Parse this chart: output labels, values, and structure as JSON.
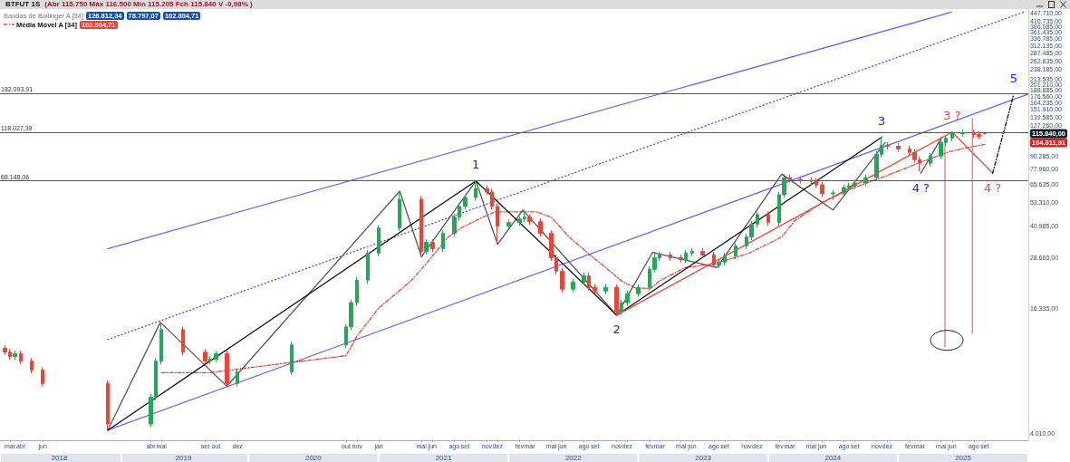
{
  "chart_data": {
    "type": "candlestick",
    "title": "BTFUT 1S",
    "subtitle": "(Abr 115.750 Máx 116.500 Min 115.205 Fch 115.840 V -0,98% )",
    "x": [
      "2018-02-15",
      "2018-03-01",
      "2018-03-15",
      "2018-04-01",
      "2018-05-01",
      "2018-06-01",
      "2018-12-01",
      "2019-04-01",
      "2019-04-15",
      "2019-05-01",
      "2019-07-01",
      "2019-09-01",
      "2019-09-15",
      "2019-10-01",
      "2019-11-01",
      "2019-12-01",
      "2020-05-01",
      "2020-10-01",
      "2020-10-15",
      "2020-11-01",
      "2020-12-01",
      "2021-01-01",
      "2021-03-01",
      "2021-05-01",
      "2021-05-15",
      "2021-06-01",
      "2021-07-01",
      "2021-08-01",
      "2021-08-15",
      "2021-09-01",
      "2021-10-01",
      "2021-11-01",
      "2021-11-15",
      "2021-12-01",
      "2022-01-01",
      "2022-02-01",
      "2022-02-15",
      "2022-03-01",
      "2022-04-01",
      "2022-05-01",
      "2022-05-15",
      "2022-06-01",
      "2022-07-01",
      "2022-08-01",
      "2022-08-15",
      "2022-09-01",
      "2022-10-01",
      "2022-11-01",
      "2022-11-15",
      "2022-12-01",
      "2023-01-01",
      "2023-02-01",
      "2023-02-15",
      "2023-03-01",
      "2023-04-01",
      "2023-05-01",
      "2023-05-15",
      "2023-06-01",
      "2023-07-01",
      "2023-08-01",
      "2023-08-15",
      "2023-09-01",
      "2023-10-01",
      "2023-11-01",
      "2023-11-15",
      "2023-12-01",
      "2024-01-01",
      "2024-02-01",
      "2024-02-15",
      "2024-03-01",
      "2024-04-01",
      "2024-05-01",
      "2024-05-15",
      "2024-06-01",
      "2024-07-01",
      "2024-08-01",
      "2024-08-15",
      "2024-09-01",
      "2024-10-01",
      "2024-11-01",
      "2024-11-15",
      "2024-12-01",
      "2025-01-01",
      "2025-02-01",
      "2025-02-15",
      "2025-03-01",
      "2025-04-01",
      "2025-05-01",
      "2025-05-15",
      "2025-06-01",
      "2025-07-01",
      "2025-08-01",
      "2025-08-15",
      "2025-09-01"
    ],
    "ohlc": [
      [
        10400,
        10760,
        9610,
        9960
      ],
      [
        9960,
        10310,
        9140,
        9470
      ],
      [
        9470,
        10110,
        9140,
        9770
      ],
      [
        9770,
        10110,
        8690,
        9000
      ],
      [
        9000,
        9320,
        7860,
        8140
      ],
      [
        8140,
        8420,
        6760,
        7000
      ],
      [
        7000,
        7250,
        4140,
        4440
      ],
      [
        4440,
        6220,
        4290,
        6010
      ],
      [
        6010,
        9320,
        5800,
        9000
      ],
      [
        9000,
        13910,
        8690,
        12820
      ],
      [
        12820,
        13270,
        9610,
        9960
      ],
      [
        9960,
        10310,
        8690,
        9000
      ],
      [
        9000,
        9510,
        8690,
        9190
      ],
      [
        9190,
        10110,
        8870,
        9770
      ],
      [
        9770,
        10110,
        6790,
        7000
      ],
      [
        7000,
        8260,
        6760,
        7980
      ],
      [
        7980,
        11180,
        7700,
        10800
      ],
      [
        10800,
        13680,
        10420,
        13220
      ],
      [
        13220,
        17980,
        12760,
        17370
      ],
      [
        17370,
        23140,
        16760,
        22360
      ],
      [
        22360,
        31330,
        21580,
        30270
      ],
      [
        30270,
        41570,
        29210,
        40160
      ],
      [
        40160,
        60780,
        38760,
        55490
      ],
      [
        55490,
        57430,
        29070,
        30880
      ],
      [
        30880,
        35370,
        29800,
        34170
      ],
      [
        34170,
        35370,
        30730,
        31840
      ],
      [
        31840,
        39120,
        30730,
        37800
      ],
      [
        37800,
        46930,
        36480,
        45340
      ],
      [
        45340,
        52960,
        43750,
        51170
      ],
      [
        51170,
        58610,
        49380,
        56630
      ],
      [
        56630,
        68150,
        54650,
        62640
      ],
      [
        62640,
        64830,
        58070,
        60180
      ],
      [
        60180,
        62290,
        49380,
        51170
      ],
      [
        51170,
        52960,
        33490,
        40990
      ],
      [
        40990,
        44160,
        39560,
        42670
      ],
      [
        42670,
        46000,
        41180,
        44440
      ],
      [
        44440,
        49160,
        42890,
        45340
      ],
      [
        45340,
        46930,
        41600,
        43110
      ],
      [
        43110,
        44620,
        36480,
        37800
      ],
      [
        37800,
        39120,
        27760,
        28770
      ],
      [
        28770,
        29780,
        23870,
        24740
      ],
      [
        24740,
        25610,
        19500,
        20210
      ],
      [
        20210,
        22680,
        19500,
        21910
      ],
      [
        21910,
        24330,
        21140,
        23510
      ],
      [
        23510,
        24330,
        19900,
        20620
      ],
      [
        20620,
        21340,
        19120,
        19810
      ],
      [
        19810,
        21340,
        19120,
        20620
      ],
      [
        20620,
        21340,
        15080,
        15700
      ],
      [
        15700,
        17980,
        15150,
        17370
      ],
      [
        17370,
        19880,
        16760,
        19210
      ],
      [
        19210,
        21340,
        18540,
        20620
      ],
      [
        20620,
        26110,
        19900,
        25230
      ],
      [
        25230,
        30570,
        24350,
        28770
      ],
      [
        28770,
        30710,
        27760,
        29670
      ],
      [
        29670,
        30710,
        27760,
        28770
      ],
      [
        28770,
        29780,
        27210,
        28200
      ],
      [
        28200,
        31330,
        27210,
        30270
      ],
      [
        30270,
        31960,
        29210,
        30880
      ],
      [
        30880,
        31960,
        28630,
        29670
      ],
      [
        29670,
        30710,
        25750,
        26550
      ],
      [
        26550,
        28320,
        25620,
        27360
      ],
      [
        27360,
        30400,
        26400,
        29370
      ],
      [
        29370,
        33980,
        28340,
        32830
      ],
      [
        32830,
        37580,
        31680,
        36310
      ],
      [
        36310,
        43280,
        35040,
        41820
      ],
      [
        41820,
        48380,
        40360,
        46740
      ],
      [
        46740,
        48380,
        41180,
        42670
      ],
      [
        42670,
        60420,
        41180,
        58380
      ],
      [
        58380,
        73640,
        56340,
        70720
      ],
      [
        70720,
        73200,
        66870,
        69300
      ],
      [
        69300,
        71730,
        66200,
        68600
      ],
      [
        68600,
        71000,
        65530,
        67910
      ],
      [
        67910,
        70290,
        62950,
        65230
      ],
      [
        65230,
        67510,
        56920,
        58980
      ],
      [
        58980,
        61650,
        55000,
        59570
      ],
      [
        59570,
        65490,
        57490,
        63280
      ],
      [
        63280,
        66830,
        61060,
        64570
      ],
      [
        64570,
        68890,
        62310,
        66560
      ],
      [
        66560,
        73200,
        64230,
        70720
      ],
      [
        70720,
        95180,
        68240,
        91960
      ],
      [
        91960,
        111400,
        88740,
        101730
      ],
      [
        101730,
        105290,
        96980,
        100500
      ],
      [
        100500,
        104020,
        94280,
        97700
      ],
      [
        97700,
        101120,
        90540,
        93830
      ],
      [
        93830,
        97110,
        83520,
        86550
      ],
      [
        86550,
        89580,
        76000,
        83120
      ],
      [
        83120,
        93270,
        80210,
        90120
      ],
      [
        90120,
        108510,
        86970,
        104840
      ],
      [
        104840,
        114150,
        101170,
        110290
      ],
      [
        110290,
        119000,
        106430,
        116000
      ],
      [
        116000,
        121260,
        111940,
        117160
      ],
      [
        117160,
        121260,
        110800,
        114820
      ],
      [
        114820,
        118840,
        108600,
        112540
      ],
      [
        115750,
        116500,
        115205,
        115840
      ]
    ],
    "colors": [
      "#e8453c",
      "#e8453c",
      "#26a65b",
      "#e8453c",
      "#e8453c",
      "#e8453c",
      "#e8453c",
      "#26a65b",
      "#26a65b",
      "#26a65b",
      "#e8453c",
      "#e8453c",
      "#26a65b",
      "#26a65b",
      "#e8453c",
      "#26a65b",
      "#26a65b",
      "#26a65b",
      "#26a65b",
      "#26a65b",
      "#26a65b",
      "#26a65b",
      "#26a65b",
      "#e8453c",
      "#26a65b",
      "#e8453c",
      "#26a65b",
      "#26a65b",
      "#26a65b",
      "#26a65b",
      "#26a65b",
      "#e8453c",
      "#e8453c",
      "#e8453c",
      "#26a65b",
      "#26a65b",
      "#26a65b",
      "#e8453c",
      "#e8453c",
      "#e8453c",
      "#e8453c",
      "#e8453c",
      "#26a65b",
      "#26a65b",
      "#e8453c",
      "#e8453c",
      "#26a65b",
      "#e8453c",
      "#26a65b",
      "#26a65b",
      "#26a65b",
      "#26a65b",
      "#26a65b",
      "#26a65b",
      "#e8453c",
      "#e8453c",
      "#26a65b",
      "#26a65b",
      "#e8453c",
      "#e8453c",
      "#26a65b",
      "#26a65b",
      "#26a65b",
      "#26a65b",
      "#26a65b",
      "#26a65b",
      "#e8453c",
      "#26a65b",
      "#26a65b",
      "#e8453c",
      "#e8453c",
      "#e8453c",
      "#e8453c",
      "#e8453c",
      "#26a65b",
      "#26a65b",
      "#26a65b",
      "#26a65b",
      "#26a65b",
      "#26a65b",
      "#26a65b",
      "#e8453c",
      "#e8453c",
      "#e8453c",
      "#e8453c",
      "#e8453c",
      "#26a65b",
      "#26a65b",
      "#26a65b",
      "#26a65b",
      "#26a65b",
      "#e8453c",
      "#e8453c",
      "#26a65b"
    ],
    "series": [
      {
        "type": "line",
        "color": "#6a6af0",
        "x": [
          "2018-12-01",
          "2025-05-30"
        ],
        "values": [
          31840,
          453700
        ]
      },
      {
        "type": "line",
        "color": "#6a6af0",
        "x": [
          "2018-12-01",
          "2026-01-01"
        ],
        "values": [
          4140,
          180900
        ]
      },
      {
        "type": "line",
        "color": "#4a4ae6",
        "line_style": "dotted",
        "x": [
          "2018-12-01",
          "2025-12-19"
        ],
        "values": [
          11470,
          453700
        ]
      },
      {
        "type": "line",
        "name": "Média Móvel A [34]",
        "color": "#e8453c",
        "line_style": "dashed",
        "x": [
          "2019-05-01",
          "2019-09-15",
          "2019-12-01",
          "2020-10-01",
          "2020-11-01",
          "2021-01-01",
          "2021-04-01",
          "2021-05-20",
          "2021-07-15",
          "2021-08-25",
          "2021-10-20",
          "2021-11-25",
          "2022-02-10",
          "2022-03-20",
          "2022-05-01",
          "2022-06-20",
          "2022-08-15",
          "2022-10-01",
          "2022-11-15",
          "2022-12-25",
          "2023-02-05",
          "2023-03-01",
          "2023-05-12",
          "2023-08-01",
          "2023-09-28",
          "2023-11-08",
          "2024-02-08",
          "2024-03-15",
          "2024-06-03",
          "2024-08-30",
          "2024-11-28",
          "2025-02-25",
          "2025-05-25",
          "2025-07-10",
          "2025-09-01"
        ],
        "values": [
          7900,
          7900,
          8230,
          9570,
          11950,
          16350,
          22130,
          27640,
          36310,
          40570,
          45340,
          48170,
          48170,
          48170,
          45340,
          36310,
          29960,
          25750,
          22130,
          20410,
          20410,
          22130,
          25750,
          26820,
          28770,
          30270,
          36310,
          43550,
          53830,
          63280,
          72160,
          83120,
          94800,
          98690,
          102804.71
        ]
      },
      {
        "type": "line",
        "color": "#555555",
        "x": [
          "2018-12-01",
          "2019-04-28",
          "2019-11-01",
          "2021-03-01",
          "2021-05-01",
          "2021-10-01",
          "2021-12-01",
          "2022-02-10",
          "2022-11-01",
          "2023-02-10",
          "2023-08-10",
          "2024-02-08",
          "2024-07-01",
          "2024-11-25"
        ],
        "values": [
          4140,
          13910,
          6790,
          60780,
          29070,
          68150,
          33490,
          49160,
          15080,
          30570,
          25750,
          73640,
          49160,
          104840
        ]
      },
      {
        "type": "line",
        "color": "#555555",
        "x": [
          "2025-03-05",
          "2025-05-03"
        ],
        "values": [
          74390,
          111400
        ]
      },
      {
        "type": "line",
        "color": "#111111",
        "x": [
          "2018-12-01",
          "2021-10-01",
          "2022-11-01",
          "2024-11-15"
        ],
        "values": [
          4140,
          68150,
          15080,
          111400
        ]
      },
      {
        "type": "line",
        "color": "#e8453c",
        "x": [
          "2022-11-01",
          "2025-06-01",
          "2025-09-23"
        ],
        "values": [
          15080,
          118027,
          74390
        ]
      },
      {
        "type": "line",
        "color": "#111111",
        "line_style": "dashed",
        "x": [
          "2025-09-23",
          "2025-11-21"
        ],
        "values": [
          74390,
          179100
        ]
      },
      {
        "type": "line",
        "color": "#e87878",
        "x": [
          "2025-05-12",
          "2025-05-12"
        ],
        "values": [
          104840,
          10590
        ]
      },
      {
        "type": "line",
        "color": "#e87878",
        "x": [
          "2025-07-28",
          "2025-07-28"
        ],
        "values": [
          137700,
          12320
        ]
      }
    ],
    "xlim": [
      "2018-02-01",
      "2026-01-01"
    ],
    "xticks": [
      {
        "value": "2018-03-01",
        "label": "mar"
      },
      {
        "value": "2018-04-01",
        "label": "abr"
      },
      {
        "value": "2018-06-01",
        "label": "jun"
      },
      {
        "value": "2019-04-01",
        "label": "abr"
      },
      {
        "value": "2019-05-01",
        "label": "mai"
      },
      {
        "value": "2019-09-01",
        "label": "set"
      },
      {
        "value": "2019-10-01",
        "label": "out"
      },
      {
        "value": "2019-12-01",
        "label": "dez"
      },
      {
        "value": "2020-10-01",
        "label": "out"
      },
      {
        "value": "2020-11-01",
        "label": "nov"
      },
      {
        "value": "2021-01-01",
        "label": "jan"
      },
      {
        "value": "2021-05-01",
        "label": "mai"
      },
      {
        "value": "2021-06-01",
        "label": "jun"
      },
      {
        "value": "2021-08-01",
        "label": "ago"
      },
      {
        "value": "2021-09-01",
        "label": "set"
      },
      {
        "value": "2021-11-01",
        "label": "nov"
      },
      {
        "value": "2021-12-01",
        "label": "dez"
      },
      {
        "value": "2022-02-01",
        "label": "fev"
      },
      {
        "value": "2022-03-01",
        "label": "mar"
      },
      {
        "value": "2022-05-01",
        "label": "mai"
      },
      {
        "value": "2022-06-01",
        "label": "jun"
      },
      {
        "value": "2022-08-01",
        "label": "ago"
      },
      {
        "value": "2022-09-01",
        "label": "set"
      },
      {
        "value": "2022-11-01",
        "label": "nov"
      },
      {
        "value": "2022-12-01",
        "label": "dez"
      },
      {
        "value": "2023-02-01",
        "label": "fev"
      },
      {
        "value": "2023-03-01",
        "label": "mar"
      },
      {
        "value": "2023-05-01",
        "label": "mai"
      },
      {
        "value": "2023-06-01",
        "label": "jun"
      },
      {
        "value": "2023-08-01",
        "label": "ago"
      },
      {
        "value": "2023-09-01",
        "label": "set"
      },
      {
        "value": "2023-11-01",
        "label": "nov"
      },
      {
        "value": "2023-12-01",
        "label": "dez"
      },
      {
        "value": "2024-02-01",
        "label": "fev"
      },
      {
        "value": "2024-03-01",
        "label": "mar"
      },
      {
        "value": "2024-05-01",
        "label": "mai"
      },
      {
        "value": "2024-06-01",
        "label": "jun"
      },
      {
        "value": "2024-08-01",
        "label": "ago"
      },
      {
        "value": "2024-09-01",
        "label": "set"
      },
      {
        "value": "2024-11-01",
        "label": "nov"
      },
      {
        "value": "2024-12-01",
        "label": "dez"
      },
      {
        "value": "2025-02-01",
        "label": "fev"
      },
      {
        "value": "2025-03-01",
        "label": "mar"
      },
      {
        "value": "2025-05-01",
        "label": "mai"
      },
      {
        "value": "2025-06-01",
        "label": "jun"
      },
      {
        "value": "2025-08-01",
        "label": "ago"
      },
      {
        "value": "2025-09-01",
        "label": "set"
      }
    ],
    "x2lim": [
      "2018-02-01",
      "2026-01-01"
    ],
    "x2ticks": [
      {
        "value": "2018-07-18",
        "label": "2018"
      },
      {
        "value": "2019-07-02",
        "label": "2019"
      },
      {
        "value": "2020-07-01",
        "label": "2020"
      },
      {
        "value": "2021-07-02",
        "label": "2021"
      },
      {
        "value": "2022-07-02",
        "label": "2022"
      },
      {
        "value": "2023-07-02",
        "label": "2023"
      },
      {
        "value": "2024-07-01",
        "label": "2024"
      },
      {
        "value": "2025-07-02",
        "label": "2025"
      }
    ],
    "log": true,
    "ylim": [
      3700,
      470000
    ],
    "yticks": [
      {
        "value": 4010,
        "label": "4.010,00"
      },
      {
        "value": 16335,
        "label": "16.335,00"
      },
      {
        "value": 28660,
        "label": "28.660,00"
      },
      {
        "value": 40985,
        "label": "40.985,00"
      },
      {
        "value": 53310,
        "label": "53.310,00"
      },
      {
        "value": 65635,
        "label": "65.635,00"
      },
      {
        "value": 77960,
        "label": "77.960,00"
      },
      {
        "value": 90285,
        "label": "90.285,00"
      },
      {
        "value": 104811.91,
        "label": "104.811,91"
      },
      {
        "value": 115840,
        "label": "115.840,00"
      },
      {
        "value": 127260,
        "label": "127.260,00"
      },
      {
        "value": 139585,
        "label": "139.585,00"
      },
      {
        "value": 151910,
        "label": "151.910,00"
      },
      {
        "value": 164235,
        "label": "164.235,00"
      },
      {
        "value": 176560,
        "label": "176.560,00"
      },
      {
        "value": 188885,
        "label": "188.885,00"
      },
      {
        "value": 201210,
        "label": "201.210,00"
      },
      {
        "value": 213535,
        "label": "213.535,00"
      },
      {
        "value": 238185,
        "label": "238.185,00"
      },
      {
        "value": 262835,
        "label": "262.835,00"
      },
      {
        "value": 287485,
        "label": "287.485,00"
      },
      {
        "value": 312135,
        "label": "312.135,00"
      },
      {
        "value": 336785,
        "label": "336.785,00"
      },
      {
        "value": 361435,
        "label": "361.435,00"
      },
      {
        "value": 386085,
        "label": "386.085,00"
      },
      {
        "value": 410735,
        "label": "410.735,00"
      },
      {
        "value": 447710,
        "label": "447.710,00"
      }
    ],
    "ref_lines": [
      {
        "axis": "y",
        "value": 182093.91,
        "label": "182.093,91",
        "color": "#555555"
      },
      {
        "axis": "y",
        "value": 118027.39,
        "label": "118.027,39",
        "color": "#555555"
      },
      {
        "axis": "y",
        "value": 68148.06,
        "label": "68.148,06",
        "color": "#555555"
      }
    ],
    "legend": "top left",
    "annotations": [
      "Bandas de Bollinger A [34]",
      "126.812,34",
      "78.797,07",
      "102.804,71",
      {
        "text": "1",
        "x": "2021-10-01",
        "y": 68150
      },
      {
        "text": "2",
        "x": "2022-11-01",
        "y": 15080
      },
      {
        "text": "3",
        "x": "2024-11-15",
        "y": 111400
      },
      {
        "text": "4 ?",
        "x": "2025-03-05",
        "y": 74390
      },
      {
        "text": "5",
        "x": "2025-11-21",
        "y": 179100
      },
      {
        "text": "3 ?",
        "x": "2025-06-01",
        "y": 118027
      },
      {
        "text": "4 ?",
        "x": "2025-09-23",
        "y": 74390
      }
    ]
  }
}
